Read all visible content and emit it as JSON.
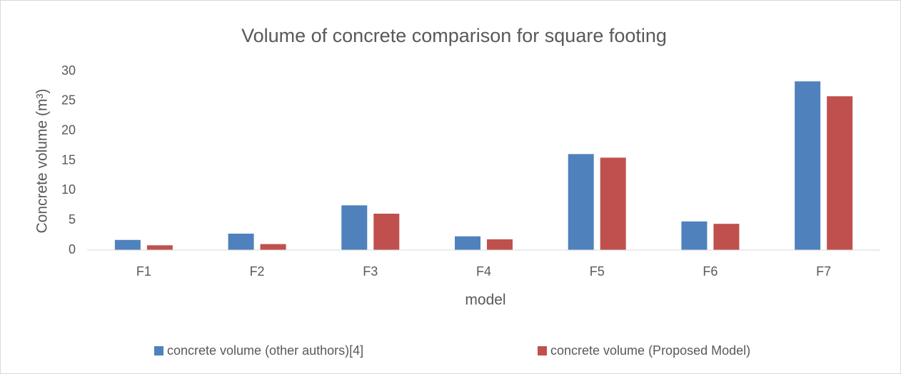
{
  "chart_data": {
    "type": "bar",
    "title": "Volume of concrete comparison for square footing",
    "x_label": "model",
    "y_label": "Concrete volume (m³)",
    "categories": [
      "F1",
      "F2",
      "F3",
      "F4",
      "F5",
      "F6",
      "F7"
    ],
    "series": [
      {
        "name": "concrete volume (other authors)[4]",
        "color": "#4f81bd",
        "values": [
          1.7,
          2.75,
          7.5,
          2.3,
          16.1,
          4.8,
          28.3
        ]
      },
      {
        "name": "concrete volume (Proposed Model)",
        "color": "#c0504d",
        "values": [
          0.8,
          1.0,
          6.1,
          1.8,
          15.5,
          4.4,
          25.8
        ]
      }
    ],
    "ylim": [
      0,
      30
    ],
    "yticks": [
      0,
      5,
      10,
      15,
      20,
      25,
      30
    ],
    "grid": false,
    "legend": "bottom"
  }
}
